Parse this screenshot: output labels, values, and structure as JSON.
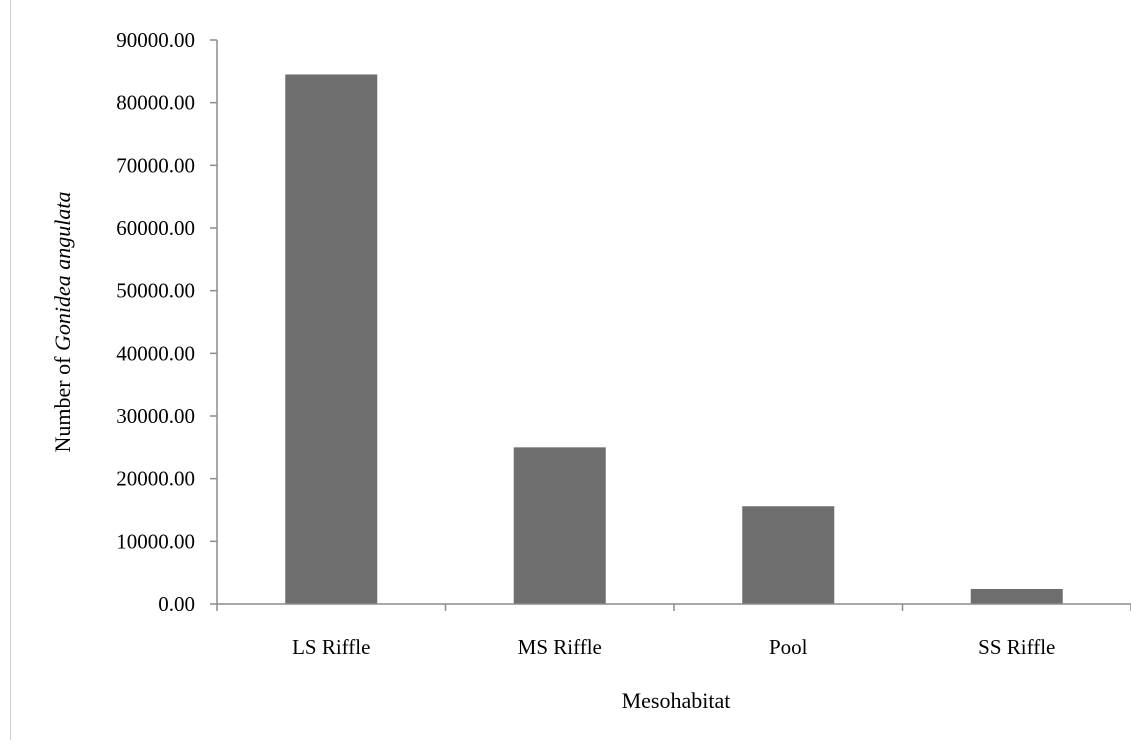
{
  "chart_data": {
    "type": "bar",
    "categories": [
      "LS Riffle",
      "MS Riffle",
      "Pool",
      "SS Riffle"
    ],
    "values": [
      84500,
      25000,
      15600,
      2400
    ],
    "xlabel": "Mesohabitat",
    "ylabel_prefix": "Number of ",
    "ylabel_italic": "Gonidea angulata",
    "ylim": [
      0,
      90000
    ],
    "yticks": [
      "0.00",
      "10000.00",
      "20000.00",
      "30000.00",
      "40000.00",
      "50000.00",
      "60000.00",
      "70000.00",
      "80000.00",
      "90000.00"
    ],
    "grid": false,
    "bar_color": "#6e6e6e",
    "axis_color": "#8c8c8c"
  }
}
